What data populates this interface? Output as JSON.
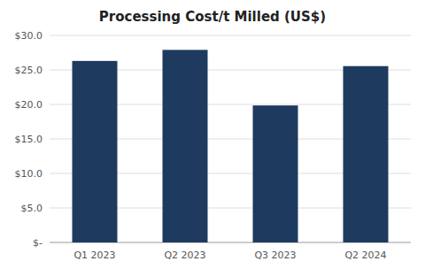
{
  "chart_data": {
    "type": "bar",
    "title": "Processing Cost/t Milled (US$)",
    "categories": [
      "Q1 2023",
      "Q2 2023",
      "Q3 2023",
      "Q2 2024"
    ],
    "values": [
      26.3,
      27.9,
      19.85,
      25.55
    ],
    "color": "#1e3a5f",
    "ylim": [
      0,
      30
    ],
    "yticks": [
      {
        "value": 0,
        "label": "$-"
      },
      {
        "value": 5,
        "label": "$5.0"
      },
      {
        "value": 10,
        "label": "$10.0"
      },
      {
        "value": 15,
        "label": "$15.0"
      },
      {
        "value": 20,
        "label": "$20.0"
      },
      {
        "value": 25,
        "label": "$25.0"
      },
      {
        "value": 30,
        "label": "$30.0"
      }
    ],
    "grid": true
  }
}
